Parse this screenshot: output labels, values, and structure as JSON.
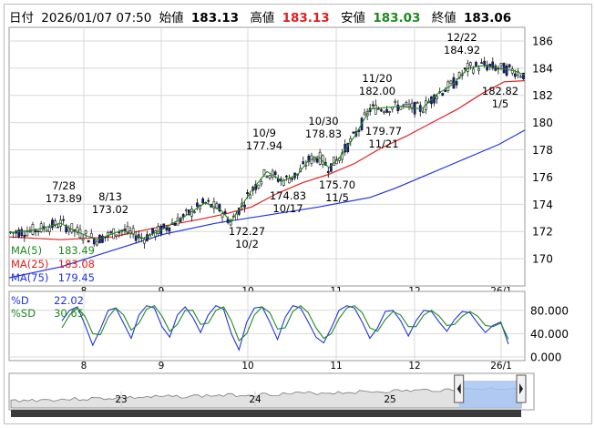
{
  "header": {
    "date_label": "日付",
    "datetime": "2026/01/07 07:50",
    "open_label": "始値",
    "open": "183.13",
    "high_label": "高値",
    "high": "183.13",
    "low_label": "安値",
    "low": "183.03",
    "close_label": "終値",
    "close": "183.06"
  },
  "colors": {
    "candle_up": "#ffffff",
    "candle_down": "#1a1aa8",
    "ma5": "#1f8a1f",
    "ma25": "#e02020",
    "ma75": "#2233dd",
    "d_line": "#2233dd",
    "sd_line": "#1f8a1f",
    "high_text": "#e02020",
    "low_text": "#1f8a1f",
    "navigator_fill": "#a6c4f2"
  },
  "chart_data": [
    {
      "type": "candlestick",
      "ylim": [
        168,
        187
      ],
      "y_ticks": [
        "186",
        "184",
        "182",
        "180",
        "178",
        "176",
        "174",
        "172",
        "170"
      ],
      "x_ticks": [
        "8",
        "9",
        "10",
        "11",
        "12",
        "26/1"
      ],
      "legend": [
        {
          "name": "MA(5)",
          "value": "183.49"
        },
        {
          "name": "MA(25)",
          "value": "183.08"
        },
        {
          "name": "MA(75)",
          "value": "179.45"
        }
      ],
      "annotations": [
        {
          "date": "7/28",
          "value": "173.89",
          "kind": "high"
        },
        {
          "date": "8/13",
          "value": "173.02",
          "kind": "high"
        },
        {
          "date": "10/2",
          "value": "172.27",
          "kind": "low"
        },
        {
          "date": "10/9",
          "value": "177.94",
          "kind": "high"
        },
        {
          "date": "10/17",
          "value": "174.83",
          "kind": "low"
        },
        {
          "date": "10/30",
          "value": "178.83",
          "kind": "high"
        },
        {
          "date": "11/5",
          "value": "175.70",
          "kind": "low"
        },
        {
          "date": "11/20",
          "value": "182.00",
          "kind": "high"
        },
        {
          "date": "11/21",
          "value": "179.77",
          "kind": "low"
        },
        {
          "date": "12/22",
          "value": "184.92",
          "kind": "high"
        },
        {
          "date": "1/5",
          "value": "182.82",
          "kind": "low"
        }
      ],
      "ma75_path": [
        [
          0,
          168.6
        ],
        [
          0.1,
          169.4
        ],
        [
          0.2,
          170.6
        ],
        [
          0.3,
          171.8
        ],
        [
          0.4,
          172.6
        ],
        [
          0.5,
          173.2
        ],
        [
          0.6,
          173.8
        ],
        [
          0.7,
          174.5
        ],
        [
          0.75,
          175.2
        ],
        [
          0.8,
          176.0
        ],
        [
          0.85,
          176.8
        ],
        [
          0.9,
          177.6
        ],
        [
          0.95,
          178.4
        ],
        [
          1.0,
          179.45
        ]
      ],
      "ma25_path": [
        [
          0,
          171.6
        ],
        [
          0.1,
          171.4
        ],
        [
          0.2,
          171.6
        ],
        [
          0.3,
          172.4
        ],
        [
          0.37,
          172.9
        ],
        [
          0.42,
          173.3
        ],
        [
          0.47,
          173.8
        ],
        [
          0.52,
          174.8
        ],
        [
          0.57,
          175.6
        ],
        [
          0.62,
          176.2
        ],
        [
          0.67,
          177.0
        ],
        [
          0.72,
          178.1
        ],
        [
          0.77,
          179.0
        ],
        [
          0.82,
          180.0
        ],
        [
          0.87,
          181.0
        ],
        [
          0.92,
          182.2
        ],
        [
          0.96,
          183.0
        ],
        [
          1.0,
          183.08
        ]
      ],
      "ma5_path": [
        [
          0,
          171.9
        ],
        [
          0.05,
          172.1
        ],
        [
          0.1,
          172.6
        ],
        [
          0.13,
          172.0
        ],
        [
          0.17,
          171.4
        ],
        [
          0.22,
          172.1
        ],
        [
          0.26,
          171.5
        ],
        [
          0.3,
          172.2
        ],
        [
          0.34,
          173.1
        ],
        [
          0.38,
          174.1
        ],
        [
          0.41,
          173.6
        ],
        [
          0.43,
          172.7
        ],
        [
          0.47,
          175.0
        ],
        [
          0.5,
          176.4
        ],
        [
          0.53,
          175.7
        ],
        [
          0.56,
          176.2
        ],
        [
          0.58,
          177.2
        ],
        [
          0.6,
          177.5
        ],
        [
          0.62,
          176.7
        ],
        [
          0.64,
          177.4
        ],
        [
          0.67,
          179.0
        ],
        [
          0.7,
          181.0
        ],
        [
          0.73,
          181.1
        ],
        [
          0.76,
          181.2
        ],
        [
          0.8,
          181.0
        ],
        [
          0.83,
          182.1
        ],
        [
          0.86,
          182.8
        ],
        [
          0.89,
          184.0
        ],
        [
          0.92,
          184.2
        ],
        [
          0.95,
          184.0
        ],
        [
          0.98,
          183.8
        ],
        [
          1.0,
          183.49
        ]
      ]
    },
    {
      "type": "line",
      "ylim": [
        0,
        100
      ],
      "y_ticks": [
        "80.000",
        "40.000",
        "0.000"
      ],
      "x_ticks": [
        "8",
        "9",
        "10",
        "11",
        "12",
        "26/1"
      ],
      "series": [
        {
          "name": "%D",
          "value": "22.02",
          "values": [
            62,
            80,
            86,
            55,
            20,
            48,
            80,
            84,
            58,
            32,
            72,
            88,
            84,
            52,
            34,
            72,
            86,
            68,
            42,
            72,
            88,
            82,
            40,
            12,
            60,
            84,
            86,
            60,
            30,
            68,
            88,
            84,
            60,
            34,
            24,
            50,
            80,
            88,
            84,
            60,
            32,
            50,
            78,
            80,
            62,
            36,
            62,
            80,
            78,
            60,
            44,
            64,
            78,
            76,
            58,
            42,
            54,
            60,
            22
          ]
        },
        {
          "name": "%SD",
          "value": "30.65",
          "values": [
            50,
            72,
            84,
            70,
            40,
            38,
            68,
            84,
            72,
            46,
            58,
            82,
            88,
            70,
            44,
            56,
            80,
            80,
            56,
            58,
            80,
            86,
            62,
            28,
            40,
            72,
            86,
            76,
            48,
            50,
            78,
            88,
            76,
            50,
            32,
            40,
            66,
            84,
            88,
            76,
            50,
            44,
            64,
            78,
            72,
            52,
            52,
            72,
            80,
            70,
            54,
            56,
            70,
            78,
            70,
            54,
            52,
            58,
            30.65
          ]
        }
      ]
    },
    {
      "type": "area",
      "x_ticks": [
        "23",
        "24",
        "25"
      ],
      "selected_range": [
        0.878,
        1.0
      ]
    }
  ]
}
